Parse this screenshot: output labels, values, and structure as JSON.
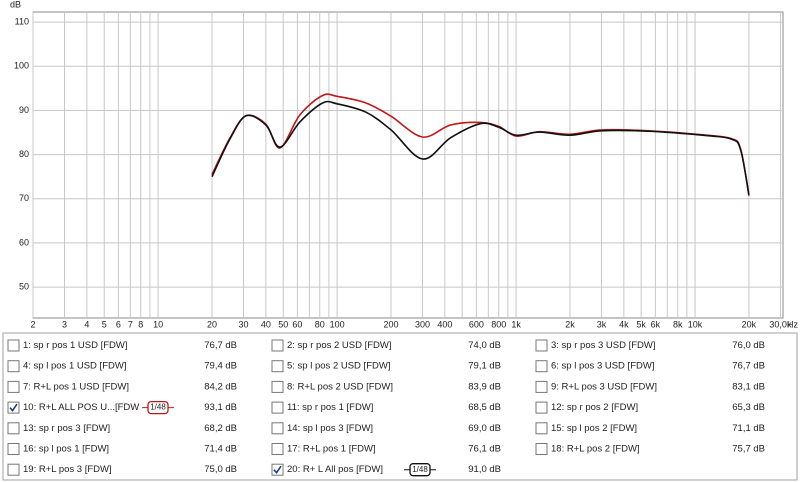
{
  "chart_data": {
    "type": "line",
    "y_unit": "dB",
    "x_unit": "Hz",
    "xscale": "log",
    "grid": true,
    "xlim": [
      2,
      31000
    ],
    "ylim": [
      43,
      112.3
    ],
    "yticks": [
      50,
      60,
      70,
      80,
      90,
      100,
      110
    ],
    "xticks": [
      2,
      3,
      4,
      5,
      6,
      7,
      8,
      10,
      20,
      30,
      40,
      50,
      60,
      80,
      100,
      200,
      300,
      400,
      600,
      800,
      {
        "value": 1000,
        "label": "1k"
      },
      {
        "value": 2000,
        "label": "2k"
      },
      {
        "value": 3000,
        "label": "3k"
      },
      {
        "value": 4000,
        "label": "4k"
      },
      {
        "value": 5000,
        "label": "5k"
      },
      {
        "value": 6000,
        "label": "6k"
      },
      {
        "value": 8000,
        "label": "8k"
      },
      {
        "value": 10000,
        "label": "10k"
      },
      {
        "value": 20000,
        "label": "20k"
      },
      {
        "value": 30000,
        "label": "30,0k"
      }
    ],
    "xminor": [
      9,
      70,
      90,
      500,
      700,
      900,
      7000,
      9000
    ],
    "x": [
      20,
      25,
      31,
      40,
      48,
      62,
      83,
      100,
      145,
      200,
      300,
      430,
      630,
      800,
      1000,
      1350,
      2000,
      3000,
      5500,
      11000,
      16000,
      18000,
      20000
    ],
    "series": [
      {
        "color": "#c01818",
        "values": [
          75.5,
          83.5,
          88.8,
          86.9,
          81.5,
          89,
          93.4,
          93.2,
          91.7,
          88.7,
          84,
          86.7,
          87.3,
          86.4,
          84.2,
          85.2,
          84.6,
          85.6,
          85.4,
          84.5,
          83.6,
          81.2,
          70.7
        ]
      },
      {
        "color": "#111111",
        "values": [
          75,
          83.3,
          88.8,
          86.7,
          81.7,
          87.4,
          91.7,
          91.5,
          89.6,
          85.6,
          79,
          83.8,
          87,
          86.2,
          84.4,
          85.1,
          84.4,
          85.4,
          85.3,
          84.4,
          83.5,
          81,
          70.9
        ]
      }
    ]
  },
  "legend": {
    "items": [
      {
        "name": "1: sp r pos 1 USD [FDW]",
        "value": "76,7 dB",
        "color": "#c01818",
        "checked": false
      },
      {
        "name": "2: sp r pos 2 USD [FDW]",
        "value": "74,0 dB",
        "color": "#2a8a2a",
        "checked": false
      },
      {
        "name": "3: sp r pos 3 USD [FDW]",
        "value": "76,0 dB",
        "color": "#4a5fc0",
        "checked": false
      },
      {
        "name": "4: sp l pos 1 USD [FDW]",
        "value": "79,4 dB",
        "color": "#c8901e",
        "checked": false
      },
      {
        "name": "5: sp l pos 2 USD [FDW]",
        "value": "79,1 dB",
        "color": "#2a8aa0",
        "checked": false
      },
      {
        "name": "6: sp l pos 3 USD [FDW]",
        "value": "76,7 dB",
        "color": "#b02a8a",
        "checked": false
      },
      {
        "name": "7: R+L pos 1 USD [FDW]",
        "value": "84,2 dB",
        "color": "#3aaa3a",
        "checked": false
      },
      {
        "name": "8: R+L pos 2 USD [FDW]",
        "value": "83,9 dB",
        "color": "#a040a0",
        "checked": false
      },
      {
        "name": "9: R+L pos 3 USD [FDW]",
        "value": "83,1 dB",
        "color": "#c0208a",
        "checked": false
      },
      {
        "name": "10: R+L ALL POS U...[FDW",
        "value": "93,1 dB",
        "color": "#c01818",
        "checked": true,
        "smoothing": "1/48"
      },
      {
        "name": "11: sp r pos 1 [FDW]",
        "value": "68,5 dB",
        "color": "#2a9a2a",
        "checked": false
      },
      {
        "name": "12: sp r pos 2 [FDW]",
        "value": "65,3 dB",
        "color": "#4a5fc0",
        "checked": false
      },
      {
        "name": "13: sp r pos 3 [FDW]",
        "value": "68,2 dB",
        "color": "#b02a8a",
        "checked": false
      },
      {
        "name": "14: sp l pos 3 [FDW]",
        "value": "69,0 dB",
        "color": "#2a8aa0",
        "checked": false
      },
      {
        "name": "15: sp l pos 2 [FDW]",
        "value": "71,1 dB",
        "color": "#c8901e",
        "checked": false
      },
      {
        "name": "16: sp l pos 1 [FDW]",
        "value": "71,4 dB",
        "color": "#3aaa3a",
        "checked": false
      },
      {
        "name": "17: R+L pos 1 [FDW]",
        "value": "76,1 dB",
        "color": "#a040a0",
        "checked": false
      },
      {
        "name": "18: R+L pos 2 [FDW]",
        "value": "75,7 dB",
        "color": "#c0208a",
        "checked": false
      },
      {
        "name": "19: R+L pos 3 [FDW]",
        "value": "75,0 dB",
        "color": "#3a7ab0",
        "checked": false
      },
      {
        "name": "20: R+ L All pos [FDW]",
        "value": "91,0 dB",
        "color": "#111111",
        "checked": true,
        "smoothing": "1/48"
      }
    ]
  }
}
